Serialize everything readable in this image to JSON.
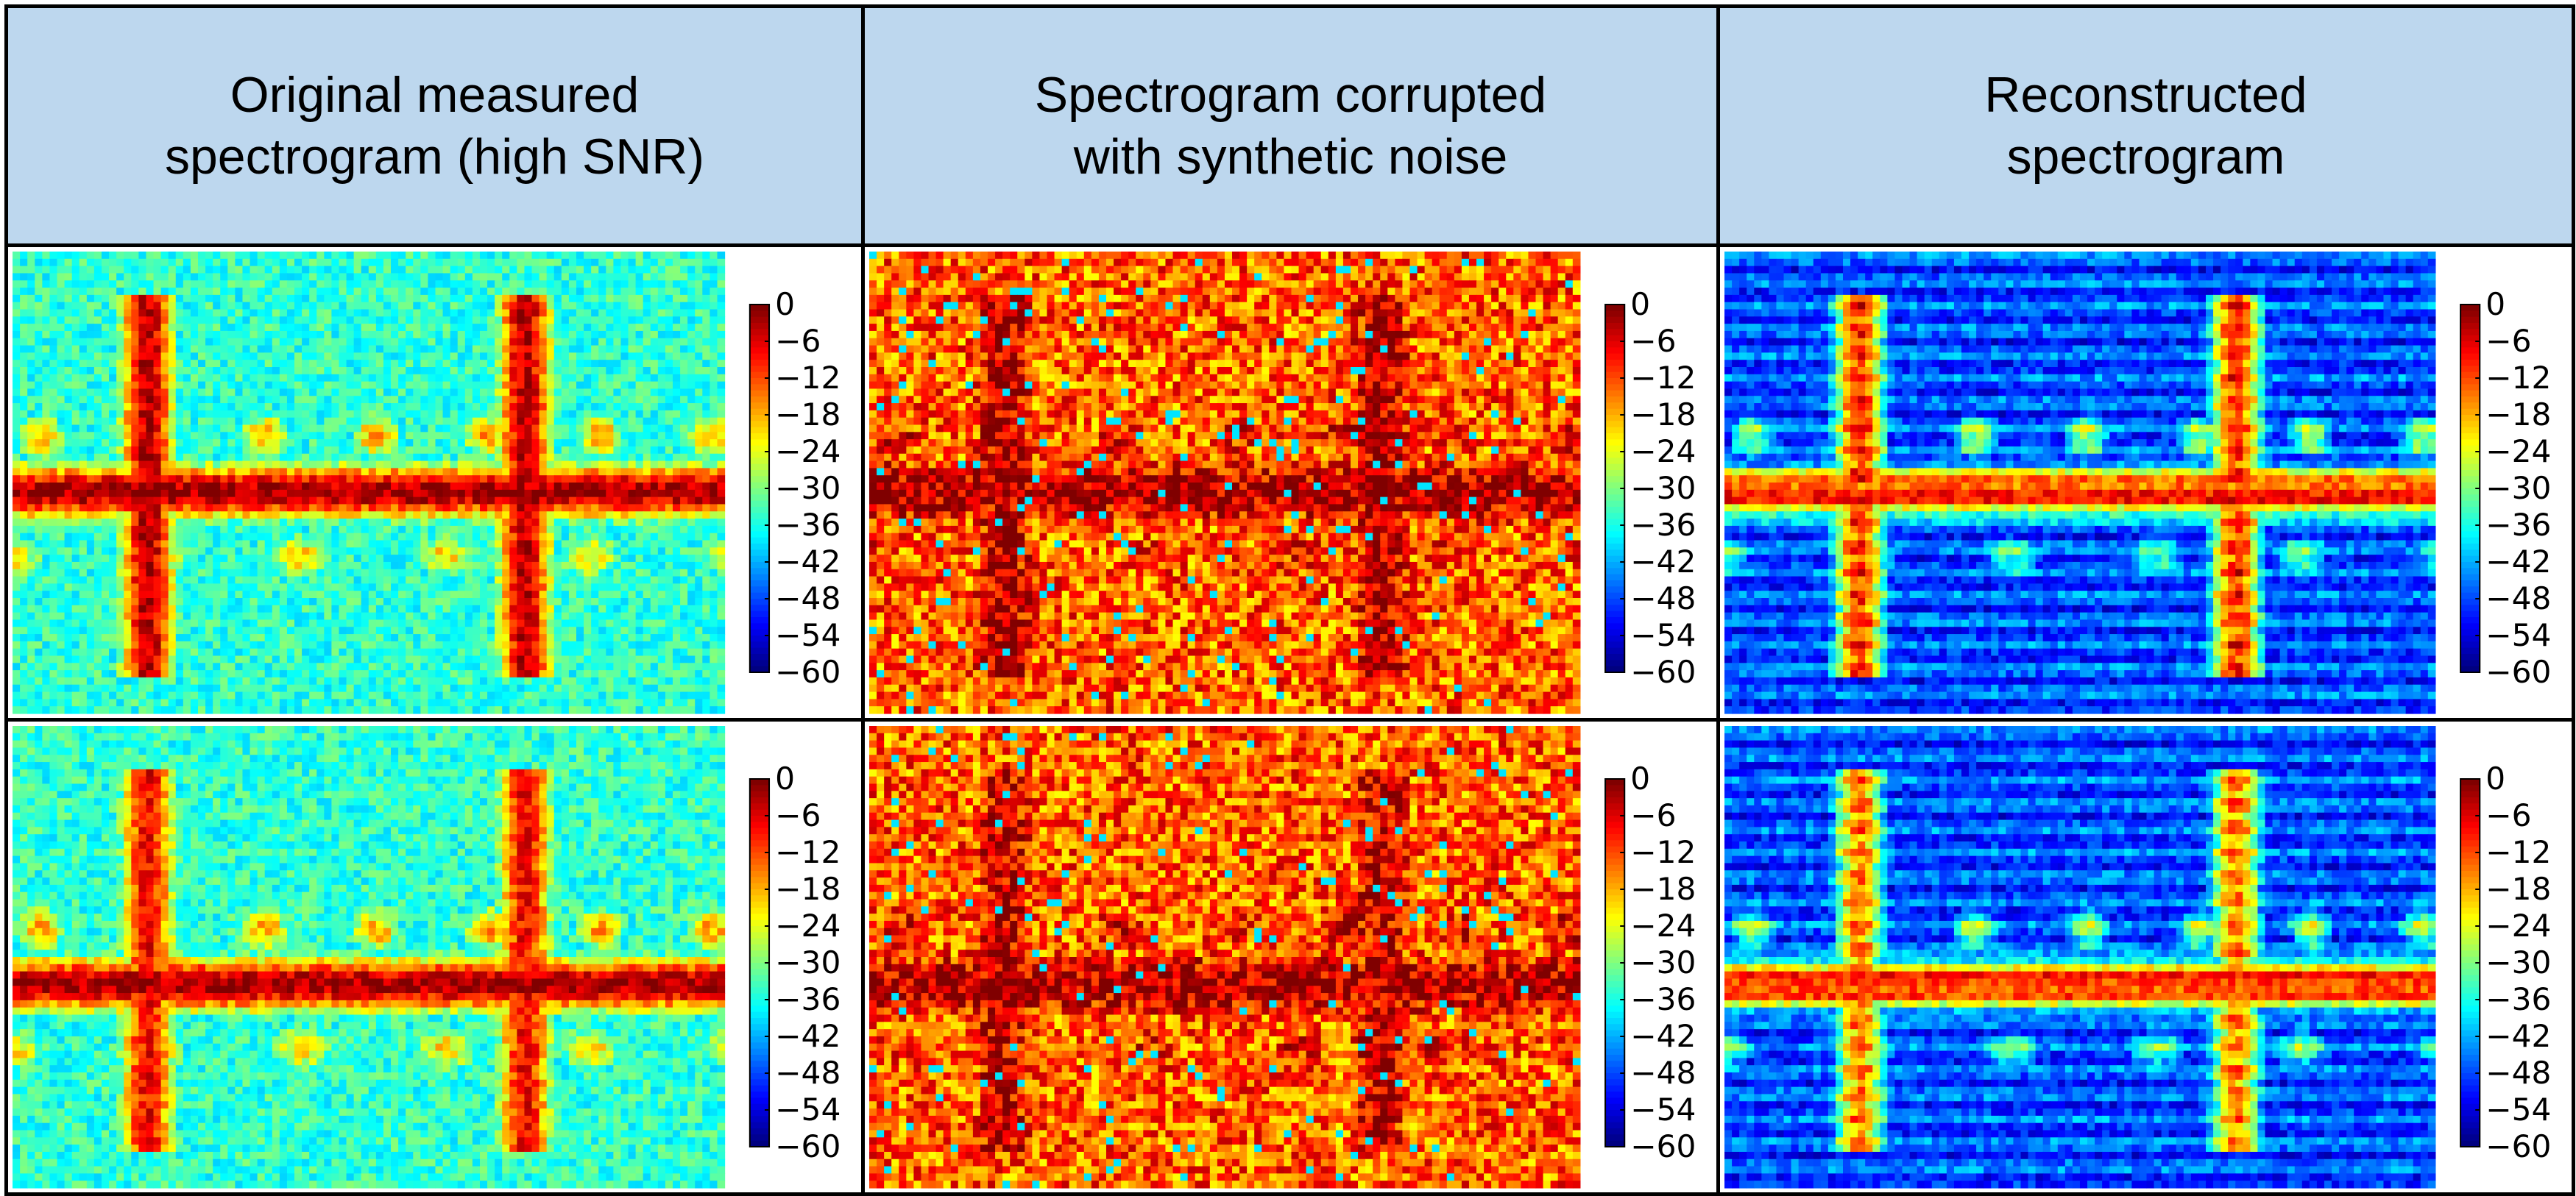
{
  "columns": [
    {
      "id": "original",
      "header": "Original measured\nspectrogram (high SNR)"
    },
    {
      "id": "noisy",
      "header": "Spectrogram corrupted\nwith synthetic noise"
    },
    {
      "id": "reconstructed",
      "header": "Reconstructed\nspectrogram"
    }
  ],
  "colorbar": {
    "ticks": [
      "0",
      "−6",
      "−12",
      "−18",
      "−24",
      "−30",
      "−36",
      "−42",
      "−48",
      "−54",
      "−60"
    ],
    "colormap": "jet"
  },
  "colors": {
    "header_background": "#bdd7ee",
    "border": "#000000"
  }
}
